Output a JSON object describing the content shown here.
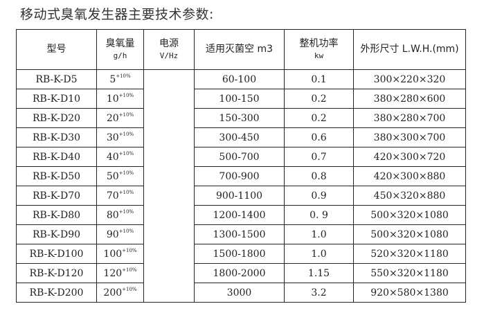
{
  "title": "移动式臭氧发生器主要技术参数:",
  "headers": [
    {
      "main": "型号",
      "unit": ""
    },
    {
      "main": "臭氧量",
      "unit": "g/h"
    },
    {
      "main": "电源",
      "unit": "V/Hz"
    },
    {
      "main": "适用灭菌空 m3",
      "unit": ""
    },
    {
      "main": "整机功率",
      "unit": "kw"
    },
    {
      "main": "外形尺寸 L.W.H.(mm)",
      "unit": ""
    }
  ],
  "tolerance": "+10%",
  "power_supply": "",
  "rows": [
    {
      "model": "RB-K-D5",
      "ozone": "5",
      "space": "60-100",
      "power": "0.1",
      "size": "300×220×320"
    },
    {
      "model": "RB-K-D10",
      "ozone": "10",
      "space": "100-150",
      "power": "0.2",
      "size": "380×280×600"
    },
    {
      "model": "RB-K-D20",
      "ozone": "20",
      "space": "150-300",
      "power": "0.2",
      "size": "380×280×700"
    },
    {
      "model": "RB-K-D30",
      "ozone": "30",
      "space": "300-450",
      "power": "0.6",
      "size": "380×300×700"
    },
    {
      "model": "RB-K-D40",
      "ozone": "40",
      "space": "500-700",
      "power": "0.7",
      "size": "420×300×720"
    },
    {
      "model": "RB-K-D50",
      "ozone": "50",
      "space": "700-900",
      "power": "0.8",
      "size": "420×300×880"
    },
    {
      "model": "RB-K-D70",
      "ozone": "70",
      "space": "900-1100",
      "power": "0.9",
      "size": "450×320×880"
    },
    {
      "model": "RB-K-D80",
      "ozone": "80",
      "space": "1200-1400",
      "power": "0. 9",
      "size": "500×320×1080"
    },
    {
      "model": "RB-K-D90",
      "ozone": "90",
      "space": "1300-1500",
      "power": "1.0",
      "size": "500×320×1080"
    },
    {
      "model": "RB-K-D100",
      "ozone": "100",
      "space": "1500-1800",
      "power": "1.0",
      "size": "520×320×1180"
    },
    {
      "model": "RB-K-D120",
      "ozone": "120",
      "space": "1800-2000",
      "power": "1.15",
      "size": "550×320×1180"
    },
    {
      "model": "RB-K-D200",
      "ozone": "200",
      "space": "3000",
      "power": "3.2",
      "size": "920×580×1380"
    }
  ]
}
